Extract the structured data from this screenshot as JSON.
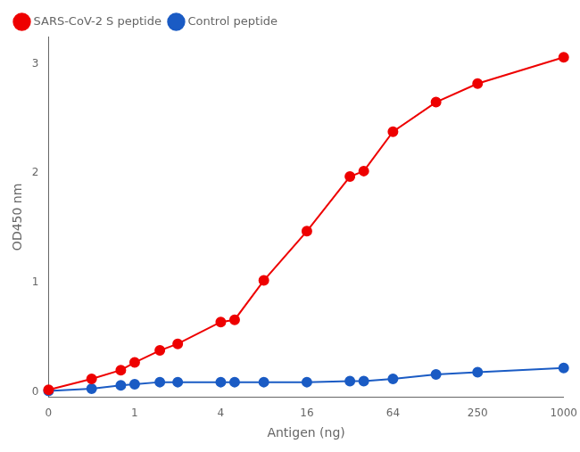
{
  "chart_data": {
    "type": "line",
    "xlabel": "Antigen (ng)",
    "ylabel": "OD450 nm",
    "x": [
      0,
      0.5,
      0.8,
      1.0,
      1.5,
      2.0,
      4.0,
      5.0,
      8.0,
      16.0,
      32.0,
      40.0,
      64.0,
      128.0,
      250.0,
      1000.0
    ],
    "series": [
      {
        "name": "SARS-CoV-2 S peptide",
        "color": "#EE0000",
        "values": [
          0.02,
          0.12,
          0.2,
          0.27,
          0.38,
          0.44,
          0.64,
          0.66,
          1.02,
          1.47,
          1.97,
          2.02,
          2.38,
          2.65,
          2.82,
          3.06
        ]
      },
      {
        "name": "Control peptide",
        "color": "#1A5BC4",
        "values": [
          0.01,
          0.03,
          0.06,
          0.07,
          0.09,
          0.09,
          0.09,
          0.09,
          0.09,
          0.09,
          0.1,
          0.1,
          0.12,
          0.16,
          0.18,
          0.22
        ]
      }
    ],
    "log": "x",
    "xlim": [
      0,
      1000
    ],
    "xticks": [
      0,
      1,
      4,
      16,
      64,
      250,
      1000
    ],
    "ylim": [
      -0.05,
      3.25
    ],
    "yticks": [
      0,
      1,
      2,
      3
    ],
    "grid": false,
    "legend": "upper left",
    "marker": "o",
    "line_style": "solid"
  }
}
